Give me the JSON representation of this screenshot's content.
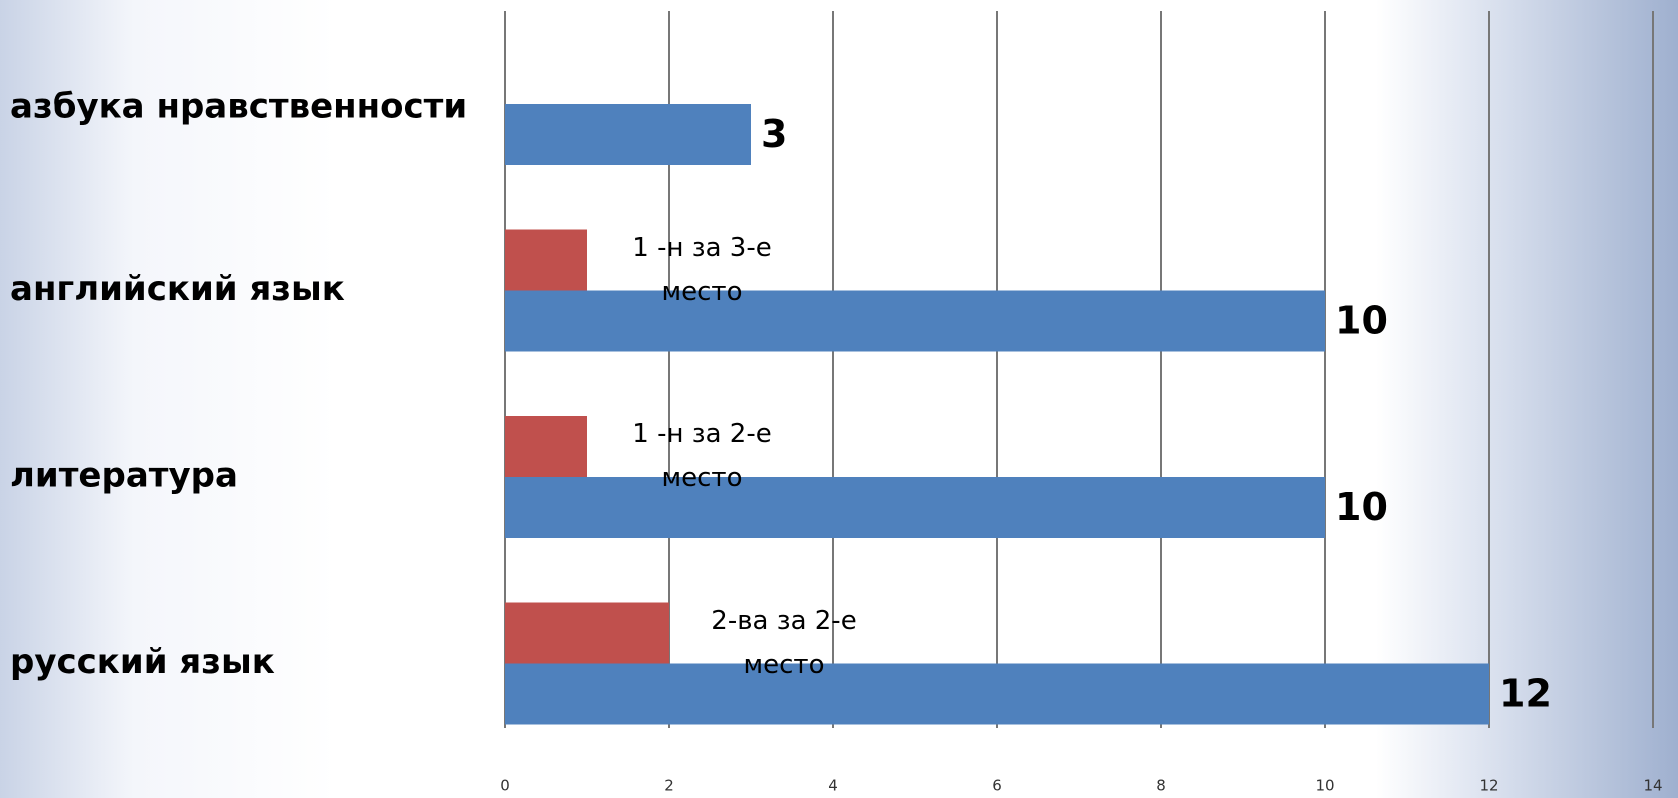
{
  "chart_data": {
    "type": "bar",
    "orientation": "horizontal",
    "categories": [
      "азбука нравственности",
      "английский язык",
      "литература",
      "русский язык"
    ],
    "series": [
      {
        "color": "#c0504d",
        "values": [
          null,
          1,
          1,
          2
        ],
        "value_labels": [
          null,
          "1 -н  за 3-е место",
          "1 -н за 2-е место",
          "2-ва за 2-е место"
        ]
      },
      {
        "color": "#4f81bd",
        "values": [
          3,
          10,
          10,
          12
        ]
      }
    ],
    "xlim": [
      0,
      14
    ],
    "xticks": [
      0,
      2,
      4,
      6,
      8,
      10,
      12,
      14
    ],
    "grid": true
  }
}
